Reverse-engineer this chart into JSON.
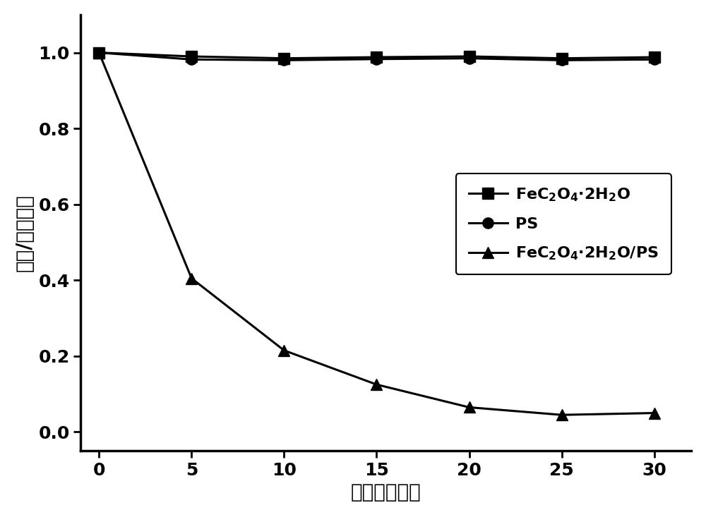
{
  "x": [
    0,
    5,
    10,
    15,
    20,
    25,
    30
  ],
  "y_fec2o4": [
    1.0,
    0.99,
    0.985,
    0.988,
    0.99,
    0.985,
    0.988
  ],
  "y_ps": [
    1.0,
    0.982,
    0.98,
    0.983,
    0.985,
    0.98,
    0.982
  ],
  "y_combined": [
    1.0,
    0.405,
    0.215,
    0.125,
    0.065,
    0.045,
    0.05
  ],
  "xlabel": "时间（分钟）",
  "ylabel": "浓度/初始浓度",
  "xlim": [
    -1,
    32
  ],
  "ylim": [
    -0.05,
    1.1
  ],
  "yticks": [
    0.0,
    0.2,
    0.4,
    0.6,
    0.8,
    1.0
  ],
  "xticks": [
    0,
    5,
    10,
    15,
    20,
    25,
    30
  ],
  "line_color": "#000000",
  "marker_size": 11,
  "linewidth": 2.2,
  "xlabel_fontsize": 20,
  "ylabel_fontsize": 20,
  "tick_fontsize": 18,
  "legend_fontsize": 16,
  "figure_facecolor": "#ffffff",
  "axes_facecolor": "#ffffff"
}
